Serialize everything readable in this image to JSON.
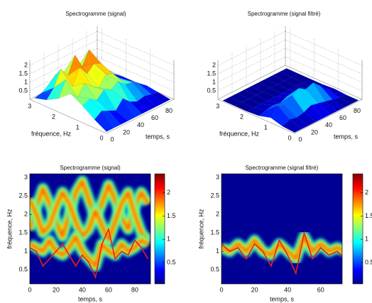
{
  "chart_data": [
    {
      "type": "surface3d",
      "title": "Spectrogramme (signal)",
      "xlabel": "temps, s",
      "ylabel": "fréquence, Hz",
      "colormap": "jet",
      "clim": [
        0,
        2.3
      ],
      "x": [
        0,
        10,
        20,
        30,
        40,
        50,
        60,
        70,
        80,
        90
      ],
      "xlim": [
        0,
        95
      ],
      "ylim": [
        0,
        3.2
      ],
      "zlim": [
        0,
        2.3
      ],
      "xticks": [
        0,
        20,
        40,
        60,
        80
      ],
      "yticks": [
        0,
        1,
        2,
        3
      ],
      "zticks": [
        0.5,
        1,
        {
          "value": 1.5,
          "label": "1.5"
        },
        2
      ],
      "slices": [
        {
          "freq": 0,
          "values": [
            0.1,
            0.1,
            0.1,
            0.1,
            0.1,
            0.1,
            0.1,
            0.1,
            0.1,
            0.1
          ]
        },
        {
          "freq": 0.5,
          "values": [
            0.5,
            0.8,
            0.6,
            0.4,
            0.9,
            0.5,
            0.3,
            0.4,
            0.3,
            0.2
          ]
        },
        {
          "freq": 1,
          "values": [
            1.0,
            1.2,
            0.9,
            1.3,
            1.1,
            1.4,
            1.0,
            0.9,
            0.6,
            0.3
          ]
        },
        {
          "freq": 1.5,
          "values": [
            1.4,
            1.0,
            1.6,
            1.2,
            0.9,
            1.5,
            1.3,
            0.8,
            0.5,
            0.2
          ]
        },
        {
          "freq": 2,
          "values": [
            0.8,
            1.7,
            1.1,
            2.0,
            1.4,
            1.8,
            1.6,
            1.0,
            0.4,
            0.2
          ]
        },
        {
          "freq": 2.5,
          "values": [
            0.4,
            0.9,
            1.8,
            1.2,
            2.2,
            1.3,
            2.1,
            0.9,
            0.3,
            0.1
          ]
        },
        {
          "freq": 3,
          "values": [
            0.2,
            0.3,
            0.6,
            1.0,
            0.8,
            1.1,
            0.7,
            0.4,
            0.2,
            0.1
          ]
        }
      ]
    },
    {
      "type": "surface3d",
      "title": "Spectrogramme (signal filtré)",
      "xlabel": "temps, s",
      "ylabel": "fréquence, Hz",
      "colormap": "jet",
      "clim": [
        0,
        2.3
      ],
      "x": [
        0,
        10,
        20,
        30,
        40,
        50,
        60,
        70,
        80,
        90
      ],
      "xlim": [
        0,
        95
      ],
      "ylim": [
        0,
        3.2
      ],
      "zlim": [
        0,
        2.3
      ],
      "xticks": [
        0,
        20,
        40,
        60,
        80
      ],
      "yticks": [
        0,
        1,
        2,
        3
      ],
      "zticks": [
        0.5,
        1,
        {
          "value": 1.5,
          "label": "1.5"
        },
        2
      ],
      "slices": [
        {
          "freq": 0,
          "values": [
            0.05,
            0.05,
            0.05,
            0.05,
            0.05,
            0.05,
            0.05,
            0.05,
            0.05,
            0.05
          ]
        },
        {
          "freq": 0.5,
          "values": [
            0.1,
            0.3,
            0.2,
            0.3,
            0.5,
            0.4,
            0.3,
            0.2,
            0.1,
            0.05
          ]
        },
        {
          "freq": 1,
          "values": [
            0.3,
            0.8,
            0.6,
            1.0,
            1.2,
            0.9,
            1.1,
            0.7,
            0.3,
            0.1
          ]
        },
        {
          "freq": 1.5,
          "values": [
            0.1,
            0.2,
            0.3,
            0.2,
            0.4,
            0.3,
            0.2,
            0.2,
            0.1,
            0.05
          ]
        },
        {
          "freq": 2,
          "values": [
            0.05,
            0.05,
            0.05,
            0.05,
            0.05,
            0.05,
            0.05,
            0.05,
            0.05,
            0.05
          ]
        },
        {
          "freq": 2.5,
          "values": [
            0.05,
            0.05,
            0.05,
            0.05,
            0.05,
            0.05,
            0.05,
            0.05,
            0.05,
            0.05
          ]
        },
        {
          "freq": 3,
          "values": [
            0.05,
            0.05,
            0.05,
            0.05,
            0.05,
            0.05,
            0.05,
            0.05,
            0.05,
            0.05
          ]
        }
      ]
    },
    {
      "type": "heatmap",
      "title": "Spectrogramme (signal)",
      "xlabel": "temps, s",
      "ylabel": "fréquence, Hz",
      "colormap": "jet",
      "xlim": [
        0,
        92
      ],
      "ylim": [
        0.12,
        3.1
      ],
      "clim": [
        0.04,
        2.41
      ],
      "xticks": [
        0,
        20,
        40,
        60,
        80
      ],
      "yticks": [
        0.5,
        1,
        {
          "value": 1.5,
          "label": "1.5"
        },
        2,
        {
          "value": 2.5,
          "label": "2.5"
        },
        3
      ],
      "cticks": [
        0.5,
        1,
        {
          "value": 1.5,
          "label": "1.5"
        },
        2
      ],
      "x": [
        0,
        5,
        10,
        15,
        20,
        25,
        30,
        35,
        40,
        45,
        50,
        55,
        60,
        65,
        70,
        75,
        80,
        85,
        90
      ],
      "tracks": [
        [
          1.6,
          2.2,
          2.7,
          2.3,
          1.8,
          1.4,
          2.0,
          2.6,
          2.9,
          2.4,
          1.9,
          2.3,
          2.8,
          2.4,
          1.9,
          1.6,
          2.2,
          2.6,
          2.3
        ],
        [
          2.4,
          2.0,
          1.5,
          1.7,
          2.2,
          2.6,
          2.3,
          1.8,
          1.4,
          1.6,
          2.1,
          1.7,
          1.3,
          1.8,
          2.3,
          2.6,
          2.0,
          1.5,
          1.3
        ],
        [
          1.2,
          1.1,
          1.0,
          1.3,
          1.0,
          0.9,
          1.1,
          1.4,
          1.0,
          0.8,
          0.6,
          1.2,
          1.0,
          0.9,
          1.2,
          1.0,
          1.1,
          1.3,
          1.2
        ]
      ],
      "line": {
        "color": "#e3221c",
        "values": [
          1.1,
          1.0,
          0.6,
          0.8,
          1.0,
          1.2,
          0.9,
          0.6,
          0.9,
          0.7,
          0.3,
          1.2,
          1.6,
          0.8,
          1.0,
          0.9,
          1.3,
          1.1,
          0.8
        ]
      }
    },
    {
      "type": "heatmap",
      "title": "Spectrogramme (signal filtré)",
      "xlabel": "temps, s",
      "ylabel": "fréquence, Hz",
      "colormap": "jet",
      "xlim": [
        0,
        73
      ],
      "ylim": [
        0.12,
        3.1
      ],
      "clim": [
        0.04,
        2.41
      ],
      "xticks": [
        0,
        20,
        40,
        60
      ],
      "yticks": [
        0.5,
        1,
        {
          "value": 1.5,
          "label": "1.5"
        },
        2,
        {
          "value": 2.5,
          "label": "2.5"
        },
        3
      ],
      "cticks": [
        0.5,
        1,
        {
          "value": 1.5,
          "label": "1.5"
        },
        2
      ],
      "x": [
        0,
        5,
        10,
        15,
        20,
        25,
        30,
        35,
        40,
        45,
        50,
        55,
        60,
        65,
        70,
        75
      ],
      "tracks": [
        [
          1.1,
          1.0,
          1.2,
          1.0,
          1.3,
          1.0,
          0.9,
          1.2,
          1.0,
          0.8,
          1.4,
          1.0,
          1.2,
          1.0,
          1.1,
          1.0
        ]
      ],
      "line": {
        "color": "#e3221c",
        "values": [
          1.2,
          1.0,
          1.1,
          0.8,
          1.2,
          1.0,
          0.6,
          1.3,
          0.9,
          0.4,
          1.5,
          0.8,
          1.1,
          0.9,
          1.0,
          0.8
        ]
      }
    }
  ]
}
